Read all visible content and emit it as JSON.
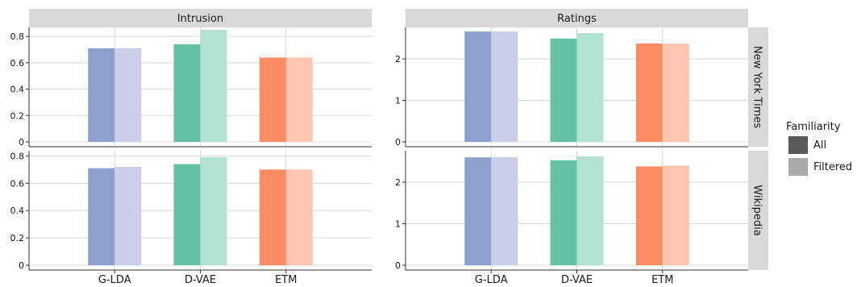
{
  "chart_data": {
    "type": "bar",
    "categories": [
      "G-LDA",
      "D-VAE",
      "ETM"
    ],
    "category_colors": {
      "All": [
        "#8da0cb",
        "#66c2a5",
        "#fc8d62"
      ],
      "Filtered": [
        "#c8cfe6",
        "#b3e1d2",
        "#fdc6b0"
      ]
    },
    "columns": [
      "Intrusion",
      "Ratings"
    ],
    "rows": [
      "New York Times",
      "Wikipedia"
    ],
    "legend": {
      "title": "Familiarity",
      "position": "right",
      "items": [
        {
          "label": "All",
          "color": "#595959"
        },
        {
          "label": "Filtered",
          "color": "#ababab"
        }
      ]
    },
    "panels": [
      {
        "column": "Intrusion",
        "row": "New York Times",
        "ylim": [
          0,
          0.85
        ],
        "yticks": [
          0,
          0.2,
          0.4,
          0.6,
          0.8
        ],
        "ytick_labels": [
          "0",
          "0.2",
          "0.4",
          "0.6",
          "0.8"
        ],
        "series": [
          {
            "name": "All",
            "values": [
              0.71,
              0.74,
              0.64
            ]
          },
          {
            "name": "Filtered",
            "values": [
              0.71,
              0.85,
              0.64
            ]
          }
        ]
      },
      {
        "column": "Ratings",
        "row": "New York Times",
        "ylim": [
          0,
          2.7
        ],
        "yticks": [
          0,
          1,
          2
        ],
        "ytick_labels": [
          "0",
          "1",
          "2"
        ],
        "series": [
          {
            "name": "All",
            "values": [
              2.66,
              2.49,
              2.37
            ]
          },
          {
            "name": "Filtered",
            "values": [
              2.66,
              2.62,
              2.37
            ]
          }
        ]
      },
      {
        "column": "Intrusion",
        "row": "Wikipedia",
        "ylim": [
          0,
          0.82
        ],
        "yticks": [
          0,
          0.2,
          0.4,
          0.6,
          0.8
        ],
        "ytick_labels": [
          "0",
          "0.2",
          "0.4",
          "0.6",
          "0.8"
        ],
        "series": [
          {
            "name": "All",
            "values": [
              0.71,
              0.74,
              0.7
            ]
          },
          {
            "name": "Filtered",
            "values": [
              0.72,
              0.79,
              0.7
            ]
          }
        ]
      },
      {
        "column": "Ratings",
        "row": "Wikipedia",
        "ylim": [
          0,
          2.7
        ],
        "yticks": [
          0,
          1,
          2
        ],
        "ytick_labels": [
          "0",
          "1",
          "2"
        ],
        "series": [
          {
            "name": "All",
            "values": [
              2.6,
              2.53,
              2.38
            ]
          },
          {
            "name": "Filtered",
            "values": [
              2.6,
              2.62,
              2.4
            ]
          }
        ]
      }
    ],
    "grid": true
  }
}
